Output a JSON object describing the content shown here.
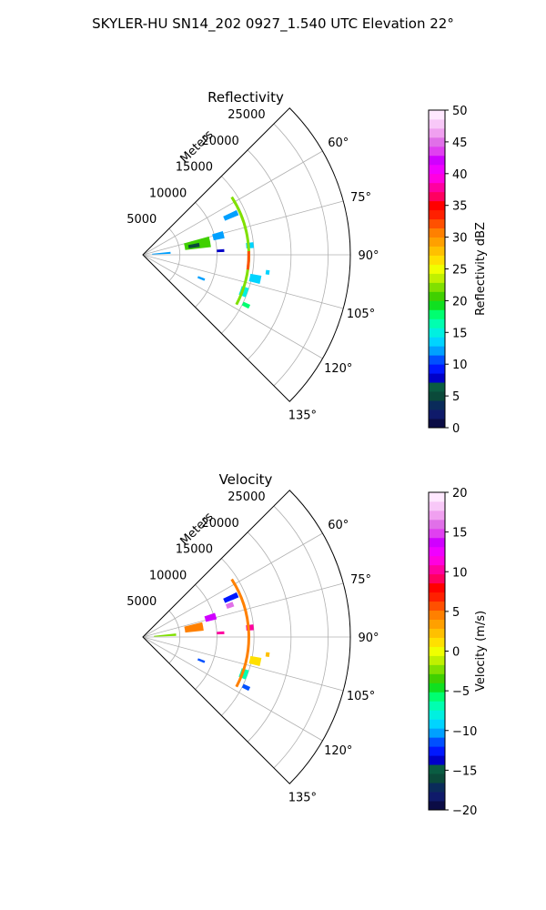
{
  "figure_title": "SKYLER-HU  SN14_202  0927_1.540 UTC Elevation 22°",
  "chart_data": [
    {
      "type": "polar-sector",
      "title": "Reflectivity",
      "radial_label": "Meters",
      "radial_ticks": [
        "5000",
        "10000",
        "15000",
        "20000",
        "25000"
      ],
      "radial_values": [
        5000,
        10000,
        15000,
        20000,
        25000
      ],
      "rmax": 28000,
      "angular_ticks": [
        "60°",
        "75°",
        "90°",
        "105°",
        "120°",
        "135°"
      ],
      "angular_values": [
        60,
        75,
        90,
        105,
        120,
        135
      ],
      "theta_range": [
        45,
        135
      ],
      "grid": true,
      "colorbar": {
        "label": "Reflectivity dBZ",
        "range": [
          0,
          50
        ],
        "ticks": [
          "0",
          "5",
          "10",
          "15",
          "20",
          "25",
          "30",
          "35",
          "40",
          "45",
          "50"
        ],
        "tick_values": [
          0,
          5,
          10,
          15,
          20,
          25,
          30,
          35,
          40,
          45,
          50
        ],
        "colors": [
          "#0b0c45",
          "#0f1a6a",
          "#0a2b5a",
          "#0b4a3a",
          "#0a5c42",
          "#0000c8",
          "#0018ff",
          "#0050ff",
          "#00a0ff",
          "#00d4ff",
          "#00f0e0",
          "#00ffb0",
          "#00ff70",
          "#10e020",
          "#40d000",
          "#80e000",
          "#c0f000",
          "#f0ff00",
          "#ffe000",
          "#ffc000",
          "#ffa000",
          "#ff8000",
          "#ff5000",
          "#ff2000",
          "#ff0000",
          "#ff0060",
          "#ff00a0",
          "#ff00e0",
          "#f000ff",
          "#d000ff",
          "#e040f0",
          "#e070e8",
          "#f0a0f0",
          "#f8c8f8",
          "#ffe8ff"
        ]
      },
      "echoes": [
        {
          "range_km": 2.5,
          "az": 86,
          "dr_km": 2.5,
          "daz": 4,
          "value": 12
        },
        {
          "range_km": 7.5,
          "az": 79,
          "dr_km": 3.5,
          "daz": 9,
          "value": 20
        },
        {
          "range_km": 7.0,
          "az": 80,
          "dr_km": 1.5,
          "daz": 4,
          "value": 5
        },
        {
          "range_km": 10.5,
          "az": 76,
          "dr_km": 1.5,
          "daz": 5,
          "value": 12
        },
        {
          "range_km": 13.0,
          "az": 66,
          "dr_km": 2.0,
          "daz": 3,
          "value": 12
        },
        {
          "range_km": 10.5,
          "az": 87,
          "dr_km": 1.0,
          "daz": 2,
          "value": 8
        },
        {
          "range_km": 14.5,
          "az": 85,
          "dr_km": 1.0,
          "daz": 3,
          "value": 13
        },
        {
          "range_km": 15.5,
          "az": 102,
          "dr_km": 1.5,
          "daz": 4,
          "value": 14
        },
        {
          "range_km": 8.5,
          "az": 112,
          "dr_km": 1.0,
          "daz": 2,
          "value": 12
        },
        {
          "range_km": 15.5,
          "az": 116,
          "dr_km": 1.0,
          "daz": 2,
          "value": 18
        },
        {
          "range_km": 14.5,
          "az": 110,
          "dr_km": 1.0,
          "daz": 5,
          "value": 15
        },
        {
          "range_km": 17.0,
          "az": 98,
          "dr_km": 0.5,
          "daz": 2,
          "value": 14
        }
      ],
      "arcs": [
        {
          "range_km": 14.3,
          "az_start": 57,
          "az_end": 118,
          "value": 22
        },
        {
          "range_km": 14.3,
          "az_start": 88,
          "az_end": 98,
          "value": 32
        }
      ]
    },
    {
      "type": "polar-sector",
      "title": "Velocity",
      "radial_label": "Meters",
      "radial_ticks": [
        "5000",
        "10000",
        "15000",
        "20000",
        "25000"
      ],
      "radial_values": [
        5000,
        10000,
        15000,
        20000,
        25000
      ],
      "rmax": 28000,
      "angular_ticks": [
        "60°",
        "75°",
        "90°",
        "105°",
        "120°",
        "135°"
      ],
      "angular_values": [
        60,
        75,
        90,
        105,
        120,
        135
      ],
      "theta_range": [
        45,
        135
      ],
      "grid": true,
      "colorbar": {
        "label": "Velocity (m/s)",
        "range": [
          -20,
          20
        ],
        "ticks": [
          "−20",
          "−15",
          "−10",
          "−5",
          "0",
          "5",
          "10",
          "15",
          "20"
        ],
        "tick_values": [
          -20,
          -15,
          -10,
          -5,
          0,
          5,
          10,
          15,
          20
        ],
        "colors": [
          "#0b0c45",
          "#0f1a6a",
          "#0a2b5a",
          "#0b4a3a",
          "#0a5c42",
          "#0000c8",
          "#0018ff",
          "#0050ff",
          "#00a0ff",
          "#00d4ff",
          "#00f0e0",
          "#00ffb0",
          "#00ff70",
          "#10e020",
          "#40d000",
          "#80e000",
          "#c0f000",
          "#f0ff00",
          "#ffe000",
          "#ffc000",
          "#ffa000",
          "#ff8000",
          "#ff5000",
          "#ff2000",
          "#ff0000",
          "#ff0060",
          "#ff00a0",
          "#ff00e0",
          "#f000ff",
          "#d000ff",
          "#e040f0",
          "#e070e8",
          "#f0a0f0",
          "#f8c8f8",
          "#ffe8ff"
        ]
      },
      "echoes": [
        {
          "range_km": 3.0,
          "az": 86,
          "dr_km": 3.0,
          "daz": 4,
          "value": -2
        },
        {
          "range_km": 7.0,
          "az": 80,
          "dr_km": 2.5,
          "daz": 8,
          "value": 4
        },
        {
          "range_km": 9.5,
          "az": 74,
          "dr_km": 1.5,
          "daz": 5,
          "value": 14
        },
        {
          "range_km": 12.5,
          "az": 70,
          "dr_km": 1.0,
          "daz": 3,
          "value": 16
        },
        {
          "range_km": 13.0,
          "az": 66,
          "dr_km": 2.0,
          "daz": 3,
          "value": -13
        },
        {
          "range_km": 10.5,
          "az": 87,
          "dr_km": 1.0,
          "daz": 2,
          "value": 10
        },
        {
          "range_km": 14.5,
          "az": 85,
          "dr_km": 1.0,
          "daz": 3,
          "value": 10
        },
        {
          "range_km": 15.5,
          "az": 102,
          "dr_km": 1.5,
          "daz": 4,
          "value": 1
        },
        {
          "range_km": 14.5,
          "az": 110,
          "dr_km": 1.0,
          "daz": 5,
          "value": -7
        },
        {
          "range_km": 8.5,
          "az": 112,
          "dr_km": 1.0,
          "daz": 2,
          "value": -12
        },
        {
          "range_km": 15.5,
          "az": 116,
          "dr_km": 1.0,
          "daz": 2,
          "value": -11
        },
        {
          "range_km": 17.0,
          "az": 98,
          "dr_km": 0.5,
          "daz": 2,
          "value": 2
        }
      ],
      "arcs": [
        {
          "range_km": 14.3,
          "az_start": 57,
          "az_end": 118,
          "value": 5
        }
      ]
    }
  ]
}
